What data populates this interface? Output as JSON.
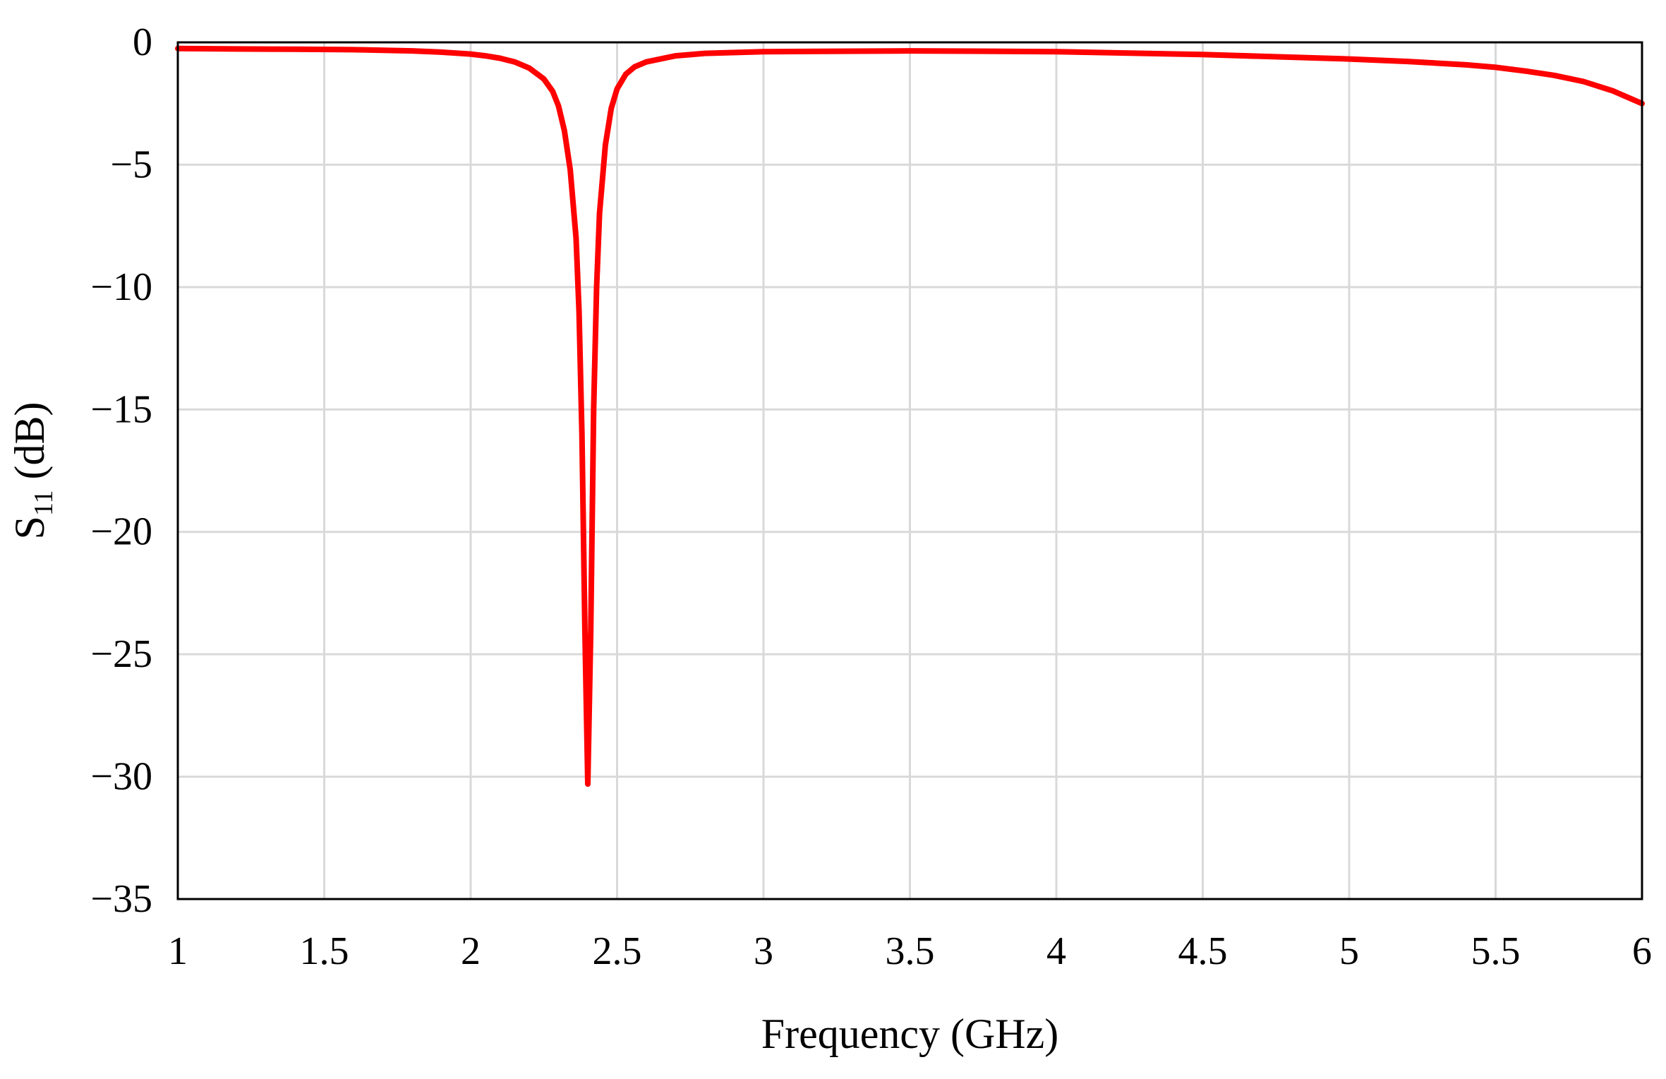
{
  "chart_data": {
    "type": "line",
    "title": "",
    "xlabel": "Frequency (GHz)",
    "ylabel": {
      "main": "S",
      "subscript": "11",
      "unit": " (dB)"
    },
    "xlim": [
      1,
      6
    ],
    "ylim": [
      -35,
      0
    ],
    "xticks": [
      1,
      1.5,
      2,
      2.5,
      3,
      3.5,
      4,
      4.5,
      5,
      5.5,
      6
    ],
    "xtick_labels": [
      "1",
      "1.5",
      "2",
      "2.5",
      "3",
      "3.5",
      "4",
      "4.5",
      "5",
      "5.5",
      "6"
    ],
    "yticks": [
      0,
      -5,
      -10,
      -15,
      -20,
      -25,
      -30,
      -35
    ],
    "ytick_labels": [
      "0",
      "−5",
      "−10",
      "−15",
      "−20",
      "−25",
      "−30",
      "−35"
    ],
    "grid": true,
    "legend": "none",
    "series": [
      {
        "color": "#ff0000",
        "x": [
          1.0,
          1.2,
          1.4,
          1.6,
          1.8,
          1.9,
          2.0,
          2.05,
          2.1,
          2.15,
          2.2,
          2.25,
          2.28,
          2.3,
          2.32,
          2.34,
          2.36,
          2.37,
          2.38,
          2.39,
          2.4,
          2.41,
          2.42,
          2.43,
          2.44,
          2.46,
          2.48,
          2.5,
          2.53,
          2.56,
          2.6,
          2.7,
          2.8,
          3.0,
          3.5,
          4.0,
          4.5,
          5.0,
          5.2,
          5.4,
          5.5,
          5.6,
          5.7,
          5.8,
          5.9,
          6.0
        ],
        "y": [
          -0.25,
          -0.27,
          -0.28,
          -0.3,
          -0.35,
          -0.4,
          -0.48,
          -0.55,
          -0.65,
          -0.8,
          -1.05,
          -1.5,
          -2.0,
          -2.6,
          -3.6,
          -5.2,
          -8.0,
          -11.0,
          -16.0,
          -24.0,
          -30.3,
          -24.0,
          -15.0,
          -10.0,
          -7.0,
          -4.2,
          -2.7,
          -1.9,
          -1.3,
          -1.0,
          -0.8,
          -0.55,
          -0.45,
          -0.38,
          -0.35,
          -0.38,
          -0.5,
          -0.68,
          -0.78,
          -0.92,
          -1.02,
          -1.17,
          -1.35,
          -1.6,
          -1.98,
          -2.5
        ]
      }
    ]
  }
}
